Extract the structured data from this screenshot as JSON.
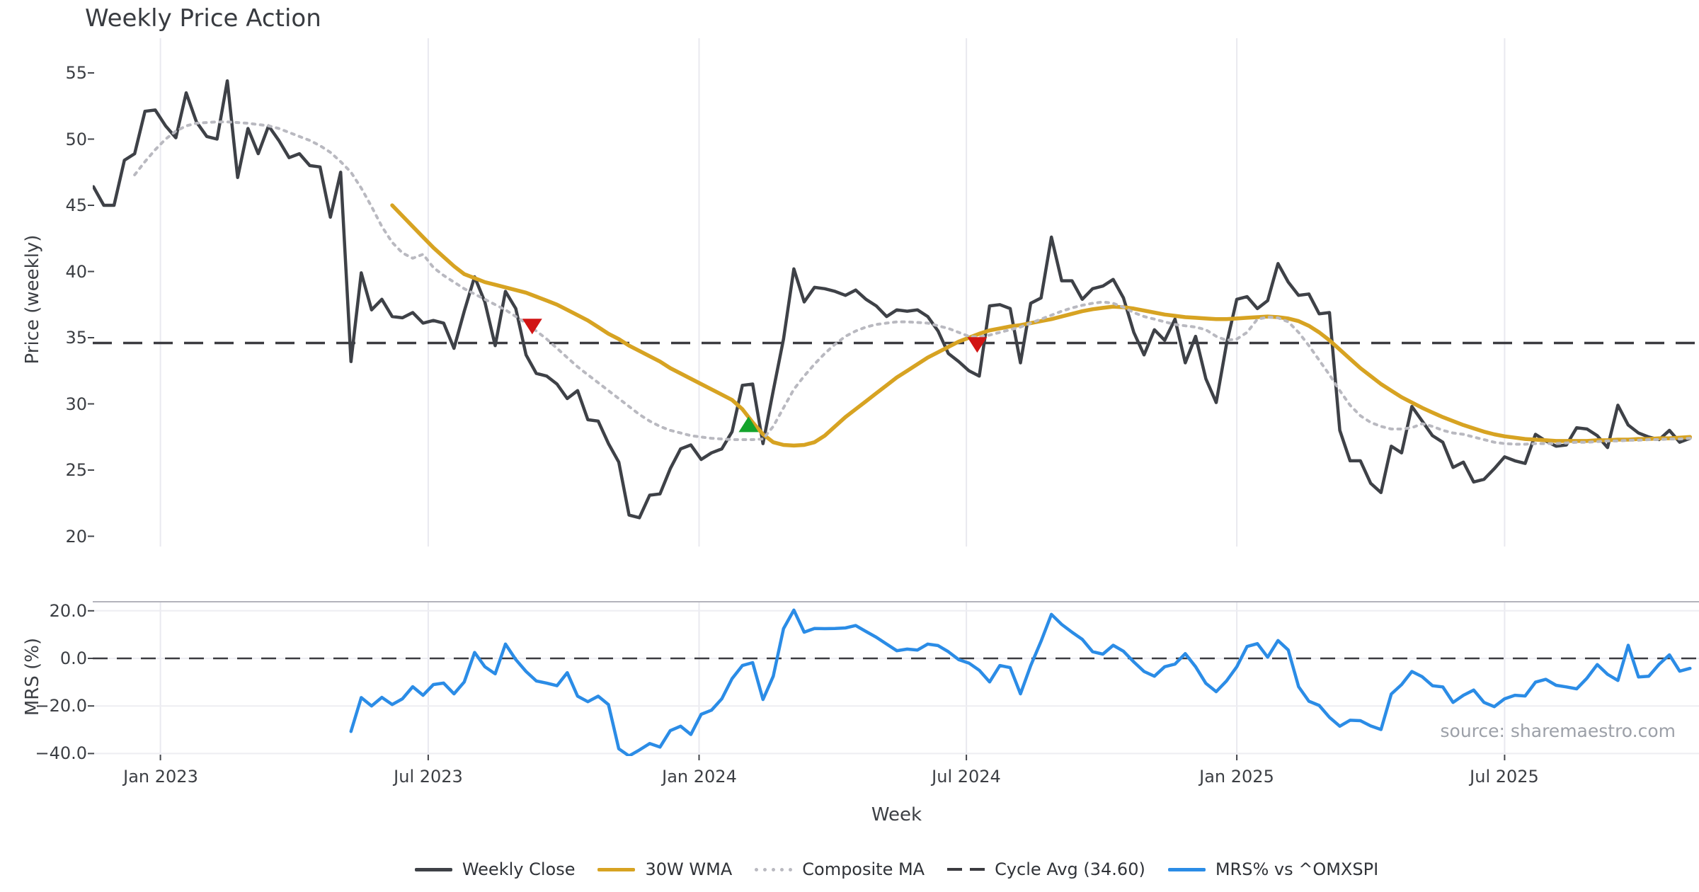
{
  "title": "Weekly Price Action",
  "xlabel": "Week",
  "source": "source: sharemaestro.com",
  "panels": {
    "price": {
      "ylabel": "Price (weekly)",
      "yticks": [
        {
          "label": "55",
          "value": 55
        },
        {
          "label": "50",
          "value": 50
        },
        {
          "label": "45",
          "value": 45
        },
        {
          "label": "40",
          "value": 40
        },
        {
          "label": "35",
          "value": 35
        },
        {
          "label": "30",
          "value": 30
        },
        {
          "label": "25",
          "value": 25
        },
        {
          "label": "20",
          "value": 20
        }
      ]
    },
    "mrs": {
      "ylabel": "MRS (%)",
      "yticks": [
        {
          "label": "20.0",
          "value": 20
        },
        {
          "label": "0.0",
          "value": 0
        },
        {
          "label": "−20.0",
          "value": -20
        },
        {
          "label": "−40.0",
          "value": -40
        }
      ]
    }
  },
  "legend": {
    "items": [
      {
        "label": "Weekly Close",
        "swatch": "solid",
        "color_key": "close"
      },
      {
        "label": "30W WMA",
        "swatch": "solid",
        "color_key": "wma"
      },
      {
        "label": "Composite MA",
        "swatch": "dots",
        "color_key": "composite"
      },
      {
        "label": "Cycle Avg (34.60)",
        "swatch": "dashes",
        "color_key": "cycle"
      },
      {
        "label": "MRS% vs ^OMXSPI",
        "swatch": "solid",
        "color_key": "mrs"
      }
    ]
  },
  "colors": {
    "close": "#3e4147",
    "wma": "#d7a322",
    "composite": "#b9b9c0",
    "cycle": "#3b3b40",
    "mrs": "#2b8ce6",
    "buy": "#14a42c",
    "sell": "#d11414",
    "grid": "#e9e9ef",
    "grid_h": "#ededf2",
    "spine": "#b3b3bb",
    "tick": "#43464b"
  },
  "chart_data": {
    "type": "line",
    "title": "Weekly Price Action",
    "xlabel": "Week",
    "x_axis": {
      "unit": "week_index",
      "tick_labels": [
        "Jan 2023",
        "Jul 2023",
        "Jan 2024",
        "Jul 2024",
        "Jan 2025",
        "Jul 2025"
      ],
      "tick_weeks": [
        6.5,
        32.5,
        58.8,
        84.75,
        111.0,
        137.0
      ],
      "total_weeks": 156,
      "grid": "vertical-on"
    },
    "price_panel": {
      "ylim": [
        19.2,
        57.6
      ],
      "yticks": [
        55,
        50,
        45,
        40,
        35,
        30,
        25,
        20
      ],
      "cycle_avg": 34.6,
      "grid": "vertical-only"
    },
    "mrs_panel": {
      "ylim": [
        -41.5,
        23.8
      ],
      "yticks": [
        20.0,
        0.0,
        -20.0,
        -40.0
      ],
      "zero_line": 0.0,
      "grid": "horizontal-and-vertical"
    },
    "series": [
      {
        "name": "Weekly Close",
        "panel": "price",
        "color_key": "close",
        "width": 4.5,
        "style": "solid",
        "start_week": 0,
        "values": [
          46.4,
          45.0,
          45.0,
          48.4,
          48.9,
          52.1,
          52.2,
          51.0,
          50.1,
          53.5,
          51.3,
          50.2,
          50.0,
          54.4,
          47.1,
          50.8,
          48.9,
          51.0,
          49.9,
          48.6,
          48.9,
          48.0,
          47.9,
          44.1,
          47.5,
          33.2,
          39.9,
          37.1,
          37.9,
          36.6,
          36.5,
          36.9,
          36.1,
          36.3,
          36.1,
          34.2,
          37.0,
          39.6,
          37.7,
          34.4,
          38.5,
          37.2,
          33.7,
          32.3,
          32.1,
          31.5,
          30.4,
          31.0,
          28.8,
          28.7,
          27.0,
          25.6,
          21.6,
          21.4,
          23.1,
          23.2,
          25.1,
          26.6,
          26.9,
          25.8,
          26.3,
          26.6,
          27.9,
          31.4,
          31.5,
          27.0,
          31.0,
          34.9,
          40.2,
          37.7,
          38.8,
          38.7,
          38.5,
          38.2,
          38.6,
          37.9,
          37.4,
          36.6,
          37.1,
          37.0,
          37.1,
          36.6,
          35.5,
          33.8,
          33.2,
          32.5,
          32.1,
          37.4,
          37.5,
          37.2,
          33.1,
          37.6,
          38.0,
          42.6,
          39.3,
          39.3,
          37.9,
          38.7,
          38.9,
          39.4,
          38.0,
          35.4,
          33.7,
          35.6,
          34.8,
          36.4,
          33.1,
          35.1,
          31.9,
          30.1,
          34.5,
          37.9,
          38.1,
          37.2,
          37.8,
          40.6,
          39.2,
          38.2,
          38.3,
          36.8,
          36.9,
          28.0,
          25.7,
          25.7,
          24.0,
          23.3,
          26.8,
          26.3,
          29.8,
          28.7,
          27.6,
          27.1,
          25.2,
          25.6,
          24.1,
          24.3,
          25.1,
          26.0,
          25.7,
          25.5,
          27.7,
          27.2,
          26.8,
          26.9,
          28.2,
          28.1,
          27.6,
          26.7,
          29.9,
          28.4,
          27.8,
          27.5,
          27.3,
          28.0,
          27.1,
          27.4
        ]
      },
      {
        "name": "30W WMA",
        "panel": "price",
        "color_key": "wma",
        "width": 5.5,
        "style": "solid",
        "start_week": 29,
        "values": [
          45.0,
          44.2,
          43.4,
          42.6,
          41.8,
          41.1,
          40.4,
          39.8,
          39.5,
          39.2,
          39.0,
          38.8,
          38.6,
          38.4,
          38.1,
          37.8,
          37.5,
          37.1,
          36.7,
          36.3,
          35.8,
          35.3,
          34.9,
          34.4,
          34.0,
          33.6,
          33.2,
          32.7,
          32.3,
          31.9,
          31.5,
          31.1,
          30.7,
          30.3,
          29.6,
          28.6,
          27.7,
          27.1,
          26.9,
          26.85,
          26.9,
          27.1,
          27.6,
          28.3,
          29.0,
          29.6,
          30.2,
          30.8,
          31.4,
          32.0,
          32.5,
          33.0,
          33.5,
          33.9,
          34.3,
          34.7,
          35.0,
          35.3,
          35.55,
          35.7,
          35.85,
          35.95,
          36.1,
          36.25,
          36.4,
          36.6,
          36.8,
          37.0,
          37.15,
          37.25,
          37.35,
          37.3,
          37.2,
          37.05,
          36.9,
          36.75,
          36.65,
          36.55,
          36.5,
          36.45,
          36.4,
          36.4,
          36.45,
          36.5,
          36.55,
          36.6,
          36.55,
          36.45,
          36.25,
          35.9,
          35.4,
          34.8,
          34.1,
          33.4,
          32.7,
          32.1,
          31.5,
          31.0,
          30.5,
          30.1,
          29.7,
          29.35,
          29.0,
          28.7,
          28.4,
          28.15,
          27.9,
          27.7,
          27.55,
          27.45,
          27.35,
          27.3,
          27.25,
          27.2,
          27.2,
          27.2,
          27.2,
          27.25,
          27.25,
          27.3,
          27.3,
          27.35,
          27.35,
          27.4,
          27.4,
          27.45,
          27.5
        ]
      },
      {
        "name": "Composite MA",
        "panel": "price",
        "color_key": "composite",
        "width": 4,
        "style": "dotted",
        "start_week": 4,
        "values": [
          47.3,
          48.3,
          49.2,
          50.0,
          50.6,
          51.0,
          51.2,
          51.25,
          51.3,
          51.3,
          51.25,
          51.2,
          51.1,
          51.0,
          50.8,
          50.5,
          50.2,
          49.9,
          49.5,
          49.0,
          48.3,
          47.5,
          46.3,
          44.9,
          43.4,
          42.2,
          41.4,
          41.0,
          41.3,
          40.3,
          39.7,
          39.2,
          38.7,
          38.3,
          37.9,
          37.5,
          37.1,
          36.6,
          36.1,
          35.5,
          34.9,
          34.2,
          33.5,
          32.8,
          32.2,
          31.6,
          31.0,
          30.4,
          29.8,
          29.2,
          28.7,
          28.3,
          28.0,
          27.8,
          27.6,
          27.5,
          27.4,
          27.35,
          27.3,
          27.3,
          27.3,
          27.35,
          28.3,
          29.7,
          31.1,
          32.1,
          33.0,
          33.8,
          34.5,
          35.1,
          35.5,
          35.8,
          36.0,
          36.1,
          36.2,
          36.2,
          36.15,
          36.1,
          35.9,
          35.7,
          35.4,
          35.1,
          35.05,
          35.2,
          35.4,
          35.6,
          35.8,
          36.1,
          36.4,
          36.7,
          37.0,
          37.25,
          37.45,
          37.6,
          37.7,
          37.6,
          37.3,
          36.9,
          36.6,
          36.4,
          36.2,
          36.0,
          35.9,
          35.8,
          35.6,
          35.1,
          34.8,
          34.9,
          35.4,
          36.4,
          36.55,
          36.5,
          36.2,
          35.4,
          34.4,
          33.3,
          32.2,
          31.0,
          29.9,
          29.1,
          28.6,
          28.3,
          28.1,
          28.1,
          28.2,
          28.5,
          28.3,
          28.0,
          27.8,
          27.7,
          27.5,
          27.3,
          27.1,
          27.0,
          26.95,
          26.95,
          27.0,
          27.0,
          27.0,
          27.05,
          27.1,
          27.1,
          27.15,
          27.2,
          27.2,
          27.25,
          27.25,
          27.3,
          27.3,
          27.35,
          27.35,
          27.4
        ]
      },
      {
        "name": "MRS% vs ^OMXSPI",
        "panel": "mrs",
        "color_key": "mrs",
        "width": 4.5,
        "style": "solid",
        "start_week": 25,
        "values": [
          -30.7,
          -16.5,
          -20.0,
          -16.4,
          -19.4,
          -17.0,
          -11.9,
          -15.5,
          -11.0,
          -10.4,
          -14.9,
          -9.9,
          2.5,
          -3.5,
          -6.5,
          6.0,
          -0.5,
          -5.5,
          -9.5,
          -10.4,
          -11.5,
          -6.0,
          -15.9,
          -18.2,
          -15.9,
          -19.4,
          -38.0,
          -41.0,
          -38.5,
          -35.8,
          -37.3,
          -30.4,
          -28.5,
          -32.0,
          -23.5,
          -21.8,
          -17.0,
          -8.5,
          -3.0,
          -1.8,
          -17.3,
          -7.5,
          12.5,
          20.3,
          11.0,
          12.6,
          12.5,
          12.6,
          12.8,
          13.8,
          11.3,
          8.9,
          6.0,
          3.2,
          3.9,
          3.5,
          6.0,
          5.4,
          2.8,
          -0.5,
          -2.0,
          -5.0,
          -9.9,
          -3.0,
          -3.9,
          -14.9,
          -3.0,
          7.2,
          18.5,
          14.3,
          11.0,
          8.0,
          2.8,
          1.8,
          5.5,
          3.0,
          -1.5,
          -5.5,
          -7.5,
          -3.5,
          -2.4,
          2.0,
          -3.5,
          -10.5,
          -14.0,
          -9.5,
          -3.5,
          5.0,
          6.2,
          0.5,
          7.5,
          3.5,
          -11.9,
          -18.0,
          -19.8,
          -24.8,
          -28.5,
          -26.0,
          -26.2,
          -28.4,
          -29.9,
          -15.0,
          -11.0,
          -5.5,
          -7.7,
          -11.5,
          -12.0,
          -18.5,
          -15.5,
          -13.3,
          -18.5,
          -20.3,
          -17.0,
          -15.5,
          -15.8,
          -10.0,
          -8.8,
          -11.3,
          -12.0,
          -12.8,
          -8.3,
          -2.6,
          -6.7,
          -9.3,
          5.5,
          -7.8,
          -7.5,
          -2.5,
          1.5,
          -5.4,
          -4.2
        ]
      }
    ],
    "markers": {
      "sell": [
        {
          "week": 42.6,
          "price": 35.9
        },
        {
          "week": 85.8,
          "price": 34.5
        }
      ],
      "buy": [
        {
          "week": 63.6,
          "price": 28.4
        }
      ]
    },
    "legend_position": "bottom-center"
  }
}
